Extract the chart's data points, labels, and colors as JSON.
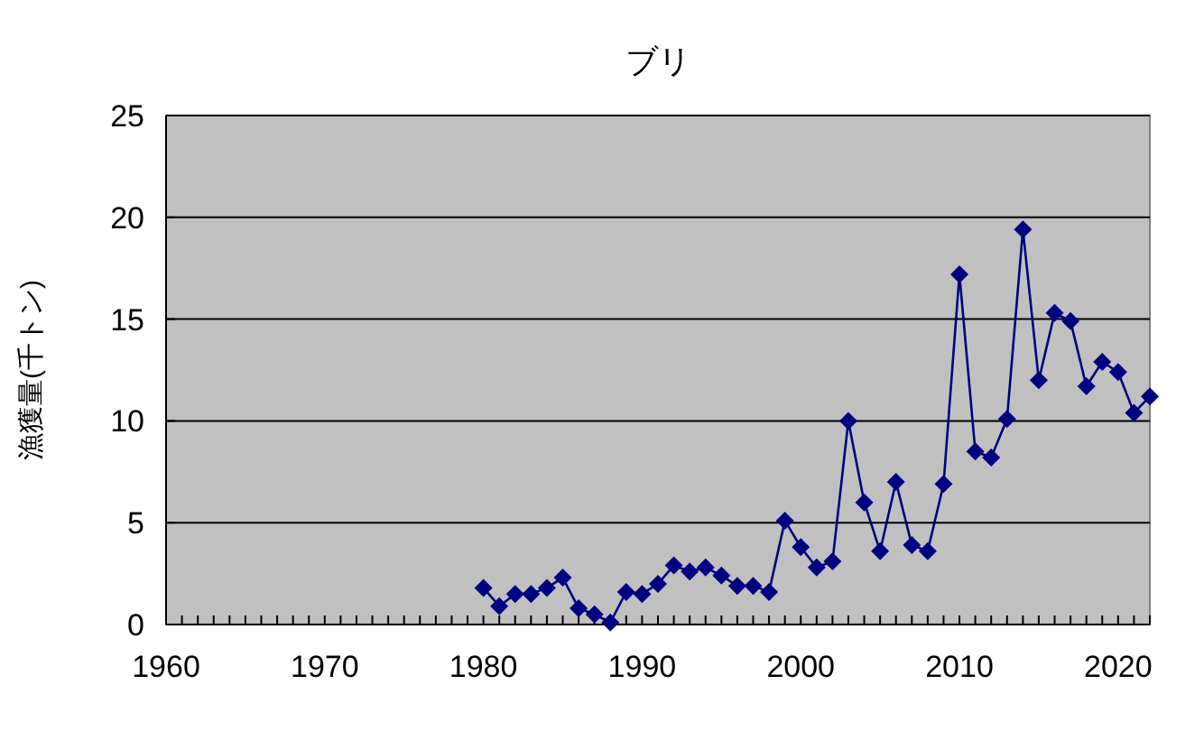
{
  "chart_data": {
    "type": "line",
    "title": "ブリ",
    "ylabel": "漁獲量(千トン)",
    "x": [
      1980,
      1981,
      1982,
      1983,
      1984,
      1985,
      1986,
      1987,
      1988,
      1989,
      1990,
      1991,
      1992,
      1993,
      1994,
      1995,
      1996,
      1997,
      1998,
      1999,
      2000,
      2001,
      2002,
      2003,
      2004,
      2005,
      2006,
      2007,
      2008,
      2009,
      2010,
      2011,
      2012,
      2013,
      2014,
      2015,
      2016,
      2017,
      2018,
      2019,
      2020,
      2021,
      2022
    ],
    "series": [
      {
        "color": "#000080",
        "values": [
          1.8,
          0.9,
          1.5,
          1.5,
          1.8,
          2.3,
          0.8,
          0.5,
          0.1,
          1.6,
          1.5,
          2.0,
          2.9,
          2.6,
          2.8,
          2.4,
          1.9,
          1.9,
          1.6,
          5.1,
          3.8,
          2.8,
          3.1,
          10.0,
          6.0,
          3.6,
          7.0,
          3.9,
          3.6,
          6.9,
          17.2,
          8.5,
          8.2,
          10.1,
          19.4,
          12.0,
          15.3,
          14.9,
          11.7,
          12.9,
          12.4,
          10.4,
          11.2
        ]
      }
    ],
    "xlim": [
      1960,
      2022
    ],
    "xticks": [
      1960,
      {
        "value": 1961,
        "label": null
      },
      {
        "value": 1962,
        "label": null
      },
      {
        "value": 1963,
        "label": null
      },
      {
        "value": 1964,
        "label": null
      },
      {
        "value": 1965,
        "label": null
      },
      {
        "value": 1966,
        "label": null
      },
      {
        "value": 1967,
        "label": null
      },
      {
        "value": 1968,
        "label": null
      },
      {
        "value": 1969,
        "label": null
      },
      1970,
      {
        "value": 1971,
        "label": null
      },
      {
        "value": 1972,
        "label": null
      },
      {
        "value": 1973,
        "label": null
      },
      {
        "value": 1974,
        "label": null
      },
      {
        "value": 1975,
        "label": null
      },
      {
        "value": 1976,
        "label": null
      },
      {
        "value": 1977,
        "label": null
      },
      {
        "value": 1978,
        "label": null
      },
      {
        "value": 1979,
        "label": null
      },
      1980,
      {
        "value": 1981,
        "label": null
      },
      {
        "value": 1982,
        "label": null
      },
      {
        "value": 1983,
        "label": null
      },
      {
        "value": 1984,
        "label": null
      },
      {
        "value": 1985,
        "label": null
      },
      {
        "value": 1986,
        "label": null
      },
      {
        "value": 1987,
        "label": null
      },
      {
        "value": 1988,
        "label": null
      },
      {
        "value": 1989,
        "label": null
      },
      1990,
      {
        "value": 1991,
        "label": null
      },
      {
        "value": 1992,
        "label": null
      },
      {
        "value": 1993,
        "label": null
      },
      {
        "value": 1994,
        "label": null
      },
      {
        "value": 1995,
        "label": null
      },
      {
        "value": 1996,
        "label": null
      },
      {
        "value": 1997,
        "label": null
      },
      {
        "value": 1998,
        "label": null
      },
      {
        "value": 1999,
        "label": null
      },
      2000,
      {
        "value": 2001,
        "label": null
      },
      {
        "value": 2002,
        "label": null
      },
      {
        "value": 2003,
        "label": null
      },
      {
        "value": 2004,
        "label": null
      },
      {
        "value": 2005,
        "label": null
      },
      {
        "value": 2006,
        "label": null
      },
      {
        "value": 2007,
        "label": null
      },
      {
        "value": 2008,
        "label": null
      },
      {
        "value": 2009,
        "label": null
      },
      2010,
      {
        "value": 2011,
        "label": null
      },
      {
        "value": 2012,
        "label": null
      },
      {
        "value": 2013,
        "label": null
      },
      {
        "value": 2014,
        "label": null
      },
      {
        "value": 2015,
        "label": null
      },
      {
        "value": 2016,
        "label": null
      },
      {
        "value": 2017,
        "label": null
      },
      {
        "value": 2018,
        "label": null
      },
      {
        "value": 2019,
        "label": null
      },
      2020,
      {
        "value": 2021,
        "label": null
      },
      {
        "value": 2022,
        "label": null
      }
    ],
    "ylim": [
      0,
      25
    ],
    "yticks": [
      0,
      5,
      10,
      15,
      20,
      25
    ],
    "grid": "y",
    "marker": "diamond",
    "line_style": "solid"
  }
}
